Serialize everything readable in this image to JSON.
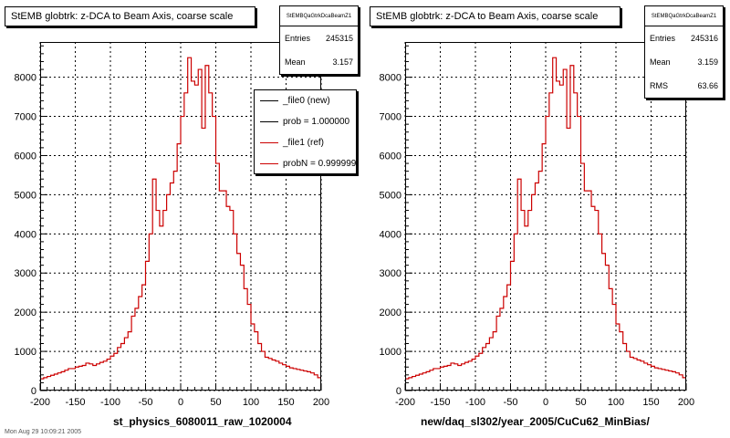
{
  "footer_text": "Mon Aug 29 10:09:21 2005",
  "pads": [
    {
      "title": "StEMB globtrk: z-DCA to Beam Axis, coarse scale",
      "stats": {
        "name": "StEMBQaGtrkDcaBeamZ1",
        "rows": [
          {
            "label": "Entries",
            "value": "245315"
          },
          {
            "label": "Mean",
            "value": "3.157"
          }
        ]
      },
      "legend": [
        {
          "label": "_file0 (new)",
          "color": "#000000"
        },
        {
          "label": "prob = 1.000000",
          "color": "#000000"
        },
        {
          "label": "_file1 (ref)",
          "color": "#cc0000"
        },
        {
          "label": "probN = 0.999999",
          "color": "#cc0000"
        }
      ],
      "xlabel": "st_physics_6080011_raw_1020004"
    },
    {
      "title": "StEMB globtrk: z-DCA to Beam Axis, coarse scale",
      "stats": {
        "name": "StEMBQaGtrkDcaBeamZ1",
        "rows": [
          {
            "label": "Entries",
            "value": "245316"
          },
          {
            "label": "Mean",
            "value": "3.159"
          },
          {
            "label": "RMS",
            "value": "63.66"
          }
        ]
      },
      "xlabel": "new/daq_sl302/year_2005/CuCu62_MinBias/"
    }
  ],
  "chart_data": {
    "type": "histogram",
    "xlim": [
      -200,
      200
    ],
    "ylim": [
      0,
      8900
    ],
    "bin_width": 5,
    "x_ticks": [
      -200,
      -150,
      -100,
      -50,
      0,
      50,
      100,
      150,
      200
    ],
    "y_ticks": [
      0,
      1000,
      2000,
      3000,
      4000,
      5000,
      6000,
      7000,
      8000
    ],
    "grid": true,
    "line_color": "#cc0000",
    "values": [
      300,
      330,
      360,
      390,
      420,
      450,
      480,
      520,
      560,
      560,
      600,
      620,
      640,
      700,
      680,
      640,
      680,
      720,
      750,
      800,
      880,
      950,
      1100,
      1200,
      1350,
      1500,
      1900,
      2100,
      2400,
      2700,
      3300,
      4000,
      5400,
      4600,
      4200,
      4600,
      5000,
      5300,
      5600,
      6300,
      7000,
      7600,
      8500,
      7900,
      7800,
      8200,
      6700,
      8300,
      7600,
      7000,
      5800,
      5100,
      5100,
      4700,
      4600,
      4000,
      3500,
      3200,
      2600,
      2200,
      1700,
      1500,
      1200,
      1000,
      850,
      820,
      780,
      750,
      700,
      660,
      620,
      580,
      560,
      540,
      520,
      500,
      480,
      450,
      400,
      330
    ]
  }
}
